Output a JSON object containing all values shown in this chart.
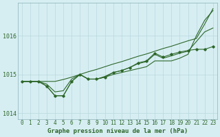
{
  "title": "Graphe pression niveau de la mer (hPa)",
  "bg_color": "#d6eef2",
  "grid_color": "#b8d8de",
  "line_color": "#2d6629",
  "hours": [
    0,
    1,
    2,
    3,
    4,
    5,
    6,
    7,
    8,
    9,
    10,
    11,
    12,
    13,
    14,
    15,
    16,
    17,
    18,
    19,
    20,
    21,
    22,
    23
  ],
  "line_straight": [
    1014.82,
    1014.82,
    1014.82,
    1014.82,
    1014.82,
    1014.87,
    1014.93,
    1015.0,
    1015.07,
    1015.13,
    1015.2,
    1015.27,
    1015.33,
    1015.4,
    1015.47,
    1015.53,
    1015.6,
    1015.67,
    1015.73,
    1015.8,
    1015.87,
    1015.93,
    1016.3,
    1016.7
  ],
  "line_markers": [
    1014.82,
    1014.82,
    1014.82,
    1014.7,
    1014.45,
    1014.45,
    1014.82,
    1015.0,
    1014.88,
    1014.88,
    1014.93,
    1015.05,
    1015.1,
    1015.18,
    1015.3,
    1015.35,
    1015.55,
    1015.45,
    1015.52,
    1015.58,
    1015.62,
    1015.65,
    1015.65,
    1015.72
  ],
  "line_upper": [
    1014.82,
    1014.82,
    1014.82,
    1014.7,
    1014.45,
    1014.45,
    1014.82,
    1015.0,
    1014.88,
    1014.88,
    1014.93,
    1015.0,
    1015.05,
    1015.1,
    1015.15,
    1015.2,
    1015.35,
    1015.35,
    1015.35,
    1015.42,
    1015.52,
    1016.0,
    1016.4,
    1016.65
  ],
  "line_avg": [
    1014.82,
    1014.82,
    1014.82,
    1014.75,
    1014.55,
    1014.58,
    1014.88,
    1015.0,
    1014.88,
    1014.88,
    1014.95,
    1015.05,
    1015.1,
    1015.18,
    1015.28,
    1015.33,
    1015.52,
    1015.42,
    1015.48,
    1015.55,
    1015.6,
    1015.85,
    1016.1,
    1016.2
  ],
  "ylim_min": 1013.85,
  "ylim_max": 1016.85,
  "yticks": [
    1014,
    1015,
    1016
  ],
  "title_fontsize": 6.5,
  "tick_fontsize": 5.5
}
